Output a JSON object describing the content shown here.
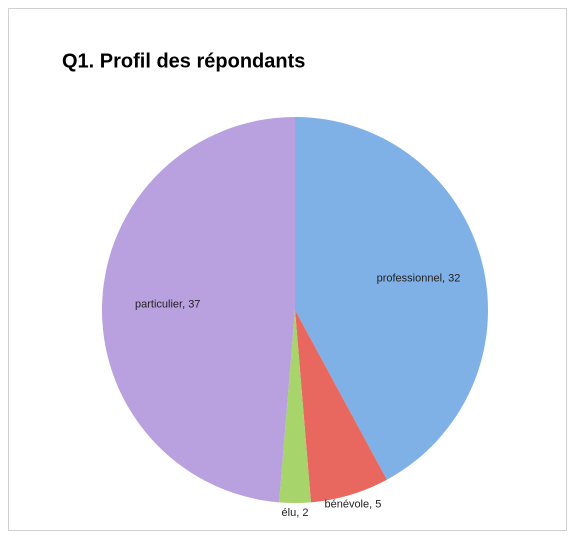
{
  "chart_data": {
    "type": "pie",
    "title": "Q1. Profil des répondants",
    "values": [
      32,
      5,
      2,
      37
    ],
    "value_labels": [
      "professionnel, 32",
      "bénévole, 5",
      "élu, 2",
      "particulier, 37"
    ],
    "colors": [
      "#7fb0e6",
      "#e8675f",
      "#a8d46c",
      "#b9a0de"
    ]
  }
}
